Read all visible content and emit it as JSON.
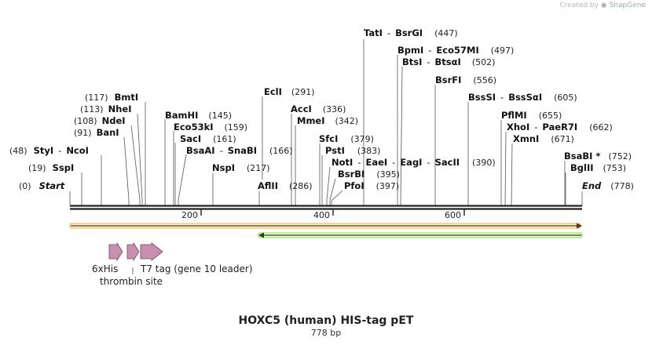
{
  "credit": {
    "prefix": "Created by",
    "brand": "SnapGene"
  },
  "map": {
    "title": "HOXC5 (human) HIS-tag pET",
    "length_label": "778 bp",
    "length": 778,
    "start_label": "Start",
    "start_pos": "(0)",
    "end_label": "End",
    "end_pos": "(778)",
    "ticks": [
      "200",
      "400",
      "600"
    ]
  },
  "sites": [
    {
      "id": "bmti",
      "name": "BmtI",
      "pos": "(117)",
      "bp": 117
    },
    {
      "id": "nhei",
      "name": "NheI",
      "pos": "(113)",
      "bp": 113
    },
    {
      "id": "ndei",
      "name": "NdeI",
      "pos": "(108)",
      "bp": 108
    },
    {
      "id": "bani",
      "name": "BanI",
      "pos": "(91)",
      "bp": 91
    },
    {
      "id": "styi",
      "name": "StyI",
      "sep": "-",
      "name2": "NcoI",
      "pos": "(48)",
      "bp": 48
    },
    {
      "id": "sspi",
      "name": "SspI",
      "pos": "(19)",
      "bp": 19
    },
    {
      "id": "bamhi",
      "name": "BamHI",
      "pos": "(145)",
      "bp": 145
    },
    {
      "id": "eco53ki",
      "name": "Eco53kI",
      "pos": "(159)",
      "bp": 159
    },
    {
      "id": "saci",
      "name": "SacI",
      "pos": "(161)",
      "bp": 161
    },
    {
      "id": "bsaai",
      "name": "BsaAI",
      "sep": "-",
      "name2": "SnaBI",
      "pos": "(166)",
      "bp": 166
    },
    {
      "id": "nspi",
      "name": "NspI",
      "pos": "(217)",
      "bp": 217
    },
    {
      "id": "ecli",
      "name": "EclI",
      "pos": "(291)",
      "bp": 291
    },
    {
      "id": "aflii",
      "name": "AflII",
      "pos": "(286)",
      "bp": 286
    },
    {
      "id": "acci",
      "name": "AccI",
      "pos": "(336)",
      "bp": 336
    },
    {
      "id": "mmei",
      "name": "MmeI",
      "pos": "(342)",
      "bp": 342
    },
    {
      "id": "sfci",
      "name": "SfcI",
      "pos": "(379)",
      "bp": 379
    },
    {
      "id": "psti",
      "name": "PstI",
      "pos": "(383)",
      "bp": 383
    },
    {
      "id": "noti",
      "name": "NotI",
      "sep": "-",
      "name2": "EaeI",
      "sep2": "-",
      "name3": "EagI",
      "sep3": "-",
      "name4": "SacII",
      "pos": "(390)",
      "bp": 390
    },
    {
      "id": "bsrbi",
      "name": "BsrBI",
      "pos": "(395)",
      "bp": 395
    },
    {
      "id": "pfoi",
      "name": "PfoI",
      "pos": "(397)",
      "bp": 397
    },
    {
      "id": "tati",
      "name": "TatI",
      "sep": "-",
      "name2": "BsrGI",
      "pos": "(447)",
      "bp": 447
    },
    {
      "id": "bpmi",
      "name": "BpmI",
      "sep": "-",
      "name2": "Eco57MI",
      "pos": "(497)",
      "bp": 497
    },
    {
      "id": "btsi",
      "name": "BtsI",
      "sep": "-",
      "name2": "BtsαI",
      "pos": "(502)",
      "bp": 502
    },
    {
      "id": "bsrfi",
      "name": "BsrFI",
      "pos": "(556)",
      "bp": 556
    },
    {
      "id": "bsssi",
      "name": "BssSI",
      "sep": "-",
      "name2": "BssSαI",
      "pos": "(605)",
      "bp": 605
    },
    {
      "id": "pflmi",
      "name": "PflMI",
      "pos": "(655)",
      "bp": 655
    },
    {
      "id": "xhoi",
      "name": "XhoI",
      "sep": "-",
      "name2": "PaeR7I",
      "pos": "(662)",
      "bp": 662
    },
    {
      "id": "xmni",
      "name": "XmnI",
      "pos": "(671)",
      "bp": 671
    },
    {
      "id": "bsabi",
      "name": "BsaBI *",
      "pos": "(752)",
      "bp": 752
    },
    {
      "id": "bglii",
      "name": "BglII",
      "pos": "(753)",
      "bp": 753
    }
  ],
  "features": [
    {
      "id": "6xhis",
      "label": "6xHis",
      "start": 62,
      "end": 80
    },
    {
      "id": "thrombin",
      "label": "thrombin site",
      "start": 89,
      "end": 107
    },
    {
      "id": "t7tag",
      "label": "T7 tag (gene 10 leader)",
      "start": 110,
      "end": 143
    }
  ],
  "tracks": [
    {
      "id": "orange",
      "start": 0,
      "end": 778,
      "direction": "forward",
      "color": "#f5a623"
    },
    {
      "id": "green",
      "start": 286,
      "end": 778,
      "direction": "reverse",
      "color": "#7ed321"
    }
  ]
}
